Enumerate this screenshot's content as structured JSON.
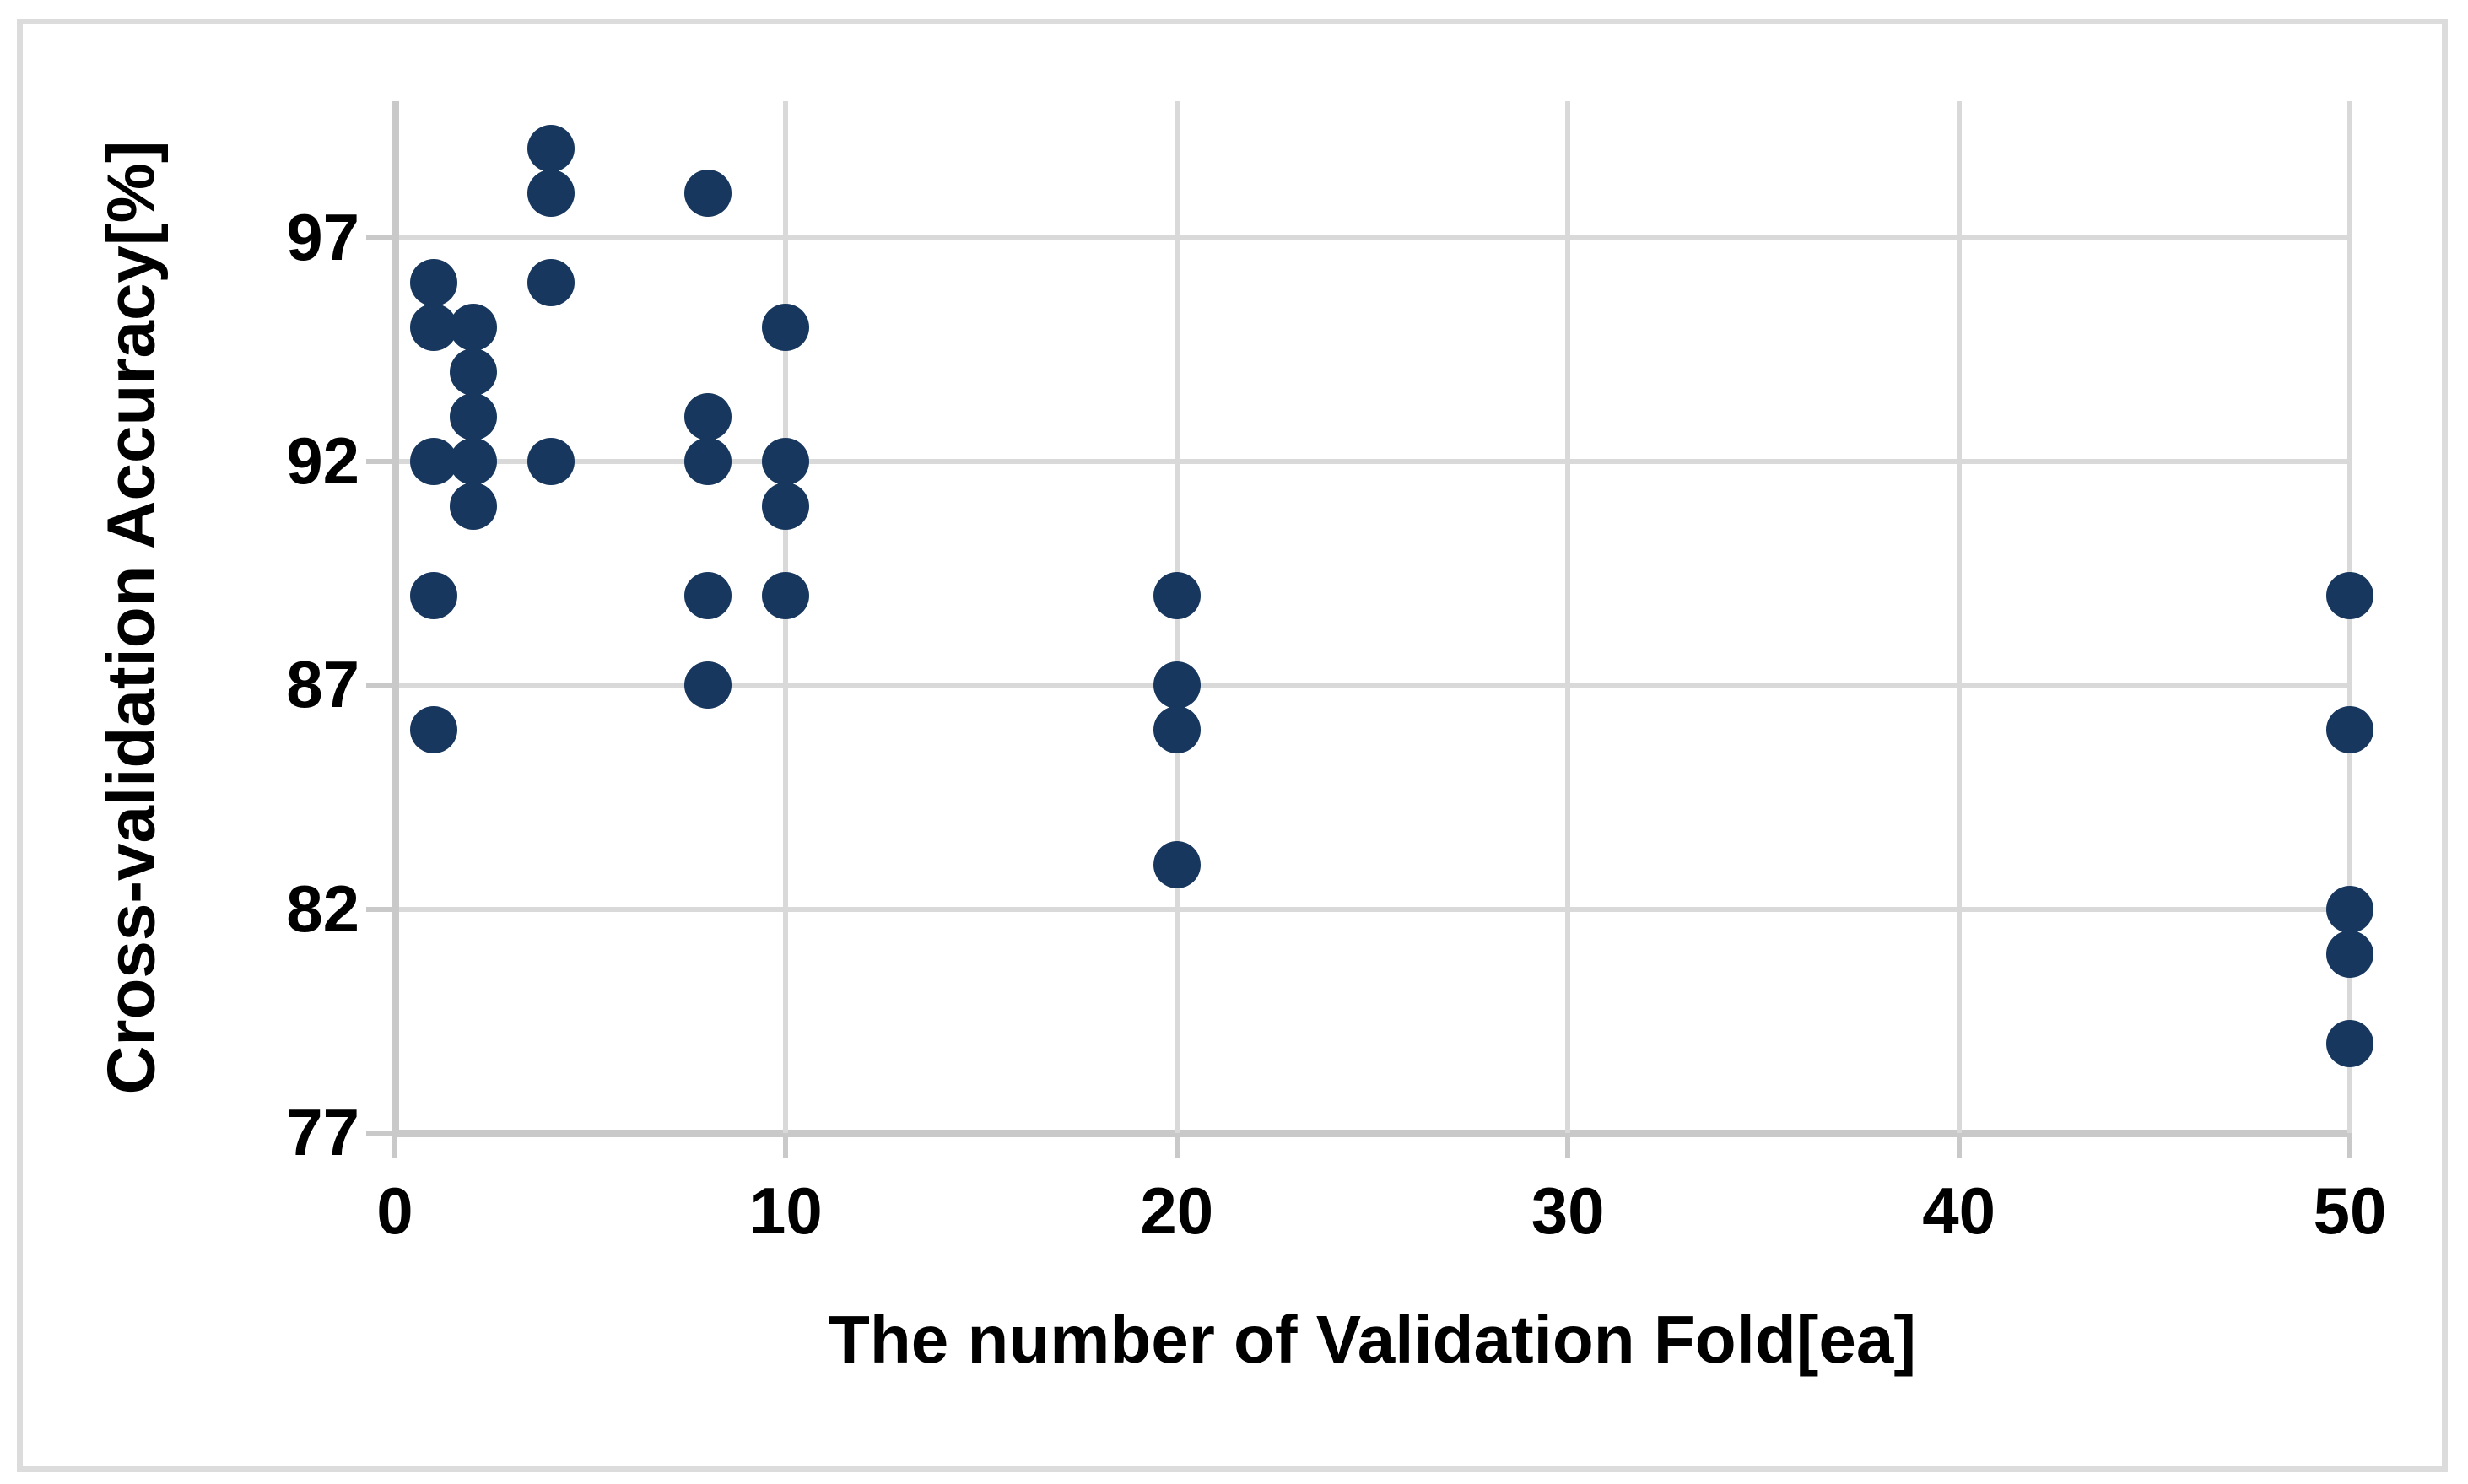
{
  "chart_data": {
    "type": "scatter",
    "title": "",
    "xlabel": "The number of Validation Fold[ea]",
    "ylabel": "Cross-validation Accuracy[%]",
    "xlim": [
      0,
      50
    ],
    "ylim": [
      77,
      100.05
    ],
    "x_ticks": [
      0,
      10,
      20,
      30,
      40,
      50
    ],
    "y_ticks": [
      97,
      92,
      87,
      82,
      77
    ],
    "grid": true,
    "legend": false,
    "marker_color": "#17375e",
    "gridline_color": "#d9d9d9",
    "axisline_color": "#c9c9c9",
    "frame_color": "#dcdcdc",
    "points": [
      {
        "x": 1,
        "y": 96
      },
      {
        "x": 1,
        "y": 95
      },
      {
        "x": 1,
        "y": 92
      },
      {
        "x": 1,
        "y": 89
      },
      {
        "x": 1,
        "y": 86
      },
      {
        "x": 2,
        "y": 95
      },
      {
        "x": 2,
        "y": 94
      },
      {
        "x": 2,
        "y": 93
      },
      {
        "x": 2,
        "y": 92
      },
      {
        "x": 2,
        "y": 91
      },
      {
        "x": 4,
        "y": 99
      },
      {
        "x": 4,
        "y": 98
      },
      {
        "x": 4,
        "y": 96
      },
      {
        "x": 4,
        "y": 92
      },
      {
        "x": 8,
        "y": 98
      },
      {
        "x": 8,
        "y": 93
      },
      {
        "x": 8,
        "y": 92
      },
      {
        "x": 8,
        "y": 89
      },
      {
        "x": 8,
        "y": 87
      },
      {
        "x": 10,
        "y": 95
      },
      {
        "x": 10,
        "y": 92
      },
      {
        "x": 10,
        "y": 91
      },
      {
        "x": 10,
        "y": 89
      },
      {
        "x": 20,
        "y": 89
      },
      {
        "x": 20,
        "y": 87
      },
      {
        "x": 20,
        "y": 86
      },
      {
        "x": 20,
        "y": 83
      },
      {
        "x": 50,
        "y": 89
      },
      {
        "x": 50,
        "y": 86
      },
      {
        "x": 50,
        "y": 82
      },
      {
        "x": 50,
        "y": 81
      },
      {
        "x": 50,
        "y": 79
      }
    ]
  }
}
